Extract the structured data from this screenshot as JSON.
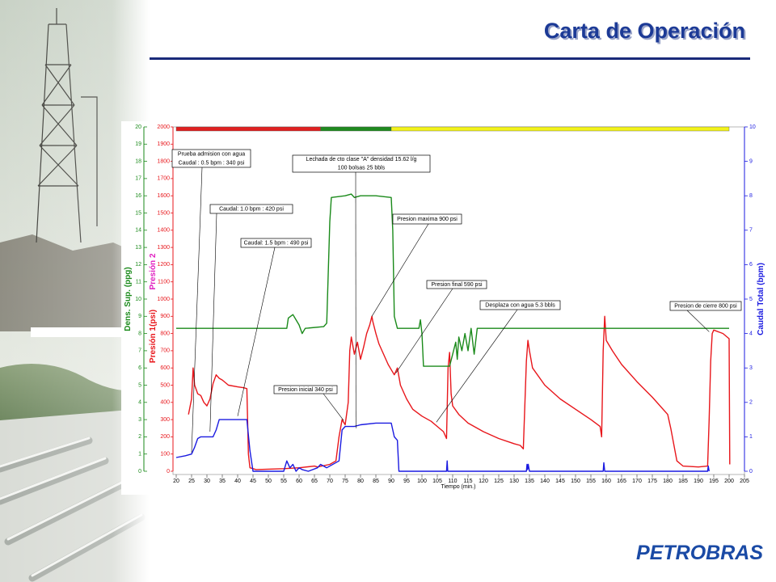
{
  "logo": "PETROBRAS",
  "chart_data": {
    "type": "line",
    "title": "Carta de Operación",
    "xlabel": "Tiempo (min.)",
    "ylabel": "Presión 1(psi)",
    "ylabel2": "Presión 2",
    "y2label": "Caudal Total (bpm)",
    "y3label": "Dens. Sup. (ppg)",
    "xlim": [
      20,
      205
    ],
    "xticks": [
      20,
      25,
      30,
      35,
      40,
      45,
      50,
      55,
      60,
      65,
      70,
      75,
      80,
      85,
      90,
      95,
      100,
      105,
      110,
      115,
      120,
      125,
      130,
      135,
      140,
      145,
      150,
      155,
      160,
      165,
      170,
      175,
      180,
      185,
      190,
      195,
      200,
      205
    ],
    "ylim": [
      0,
      2000
    ],
    "yticks": [
      0,
      100,
      200,
      300,
      400,
      500,
      600,
      700,
      800,
      900,
      1000,
      1100,
      1200,
      1300,
      1400,
      1500,
      1600,
      1700,
      1800,
      1900,
      2000
    ],
    "y2lim": [
      0,
      10
    ],
    "y2ticks": [
      0,
      1,
      2,
      3,
      4,
      5,
      6,
      7,
      8,
      9,
      10
    ],
    "y3lim": [
      0,
      20
    ],
    "y3ticks": [
      0,
      1,
      2,
      3,
      4,
      5,
      6,
      7,
      8,
      9,
      10,
      11,
      12,
      13,
      14,
      15,
      16,
      17,
      18,
      19,
      20
    ],
    "grid": false,
    "phases": [
      {
        "start": 20,
        "end": 67,
        "color": "#e02020"
      },
      {
        "start": 67,
        "end": 90,
        "color": "#1f8a1f"
      },
      {
        "start": 90,
        "end": 200,
        "color": "#f2f21a"
      }
    ],
    "series": [
      {
        "color": "#e8161b",
        "axis": "y",
        "x": [
          24,
          25,
          25.5,
          26,
          27,
          28,
          29,
          30,
          31,
          32,
          33,
          34,
          35,
          37,
          40,
          42,
          43,
          43.5,
          44,
          46,
          55,
          60,
          65,
          66,
          70,
          72,
          73,
          74,
          75,
          76,
          76.5,
          77,
          78,
          79,
          80,
          81,
          82,
          83,
          83.7,
          84,
          85,
          86,
          87,
          88,
          89,
          90,
          91,
          92,
          93,
          95,
          97,
          100,
          103,
          105,
          107,
          108,
          108.5,
          109,
          109.5,
          110,
          112,
          115,
          120,
          125,
          130,
          132,
          133,
          134,
          134.5,
          135,
          136,
          140,
          145,
          150,
          155,
          158,
          158.5,
          159,
          159.5,
          160,
          162,
          165,
          170,
          175,
          180,
          181,
          183,
          185,
          190,
          193,
          193.5,
          194,
          194.5,
          195,
          198,
          200,
          200.2
        ],
        "values": [
          330,
          420,
          600,
          500,
          450,
          440,
          400,
          380,
          420,
          510,
          560,
          540,
          530,
          500,
          490,
          485,
          480,
          100,
          20,
          10,
          15,
          20,
          30,
          25,
          40,
          60,
          200,
          300,
          270,
          400,
          700,
          780,
          680,
          750,
          650,
          720,
          800,
          850,
          900,
          870,
          800,
          740,
          700,
          660,
          620,
          590,
          560,
          600,
          500,
          420,
          360,
          320,
          290,
          260,
          230,
          190,
          600,
          690,
          450,
          380,
          330,
          280,
          230,
          190,
          160,
          150,
          130,
          640,
          760,
          700,
          600,
          500,
          420,
          360,
          300,
          260,
          200,
          700,
          900,
          760,
          700,
          620,
          520,
          430,
          330,
          250,
          60,
          30,
          25,
          30,
          300,
          640,
          800,
          820,
          800,
          770,
          40
        ]
      },
      {
        "color": "#1a8a1a",
        "axis": "y3",
        "x": [
          20,
          56,
          56.5,
          58,
          59,
          60,
          61,
          62,
          68,
          69,
          70,
          70.5,
          75,
          77,
          78,
          80,
          85,
          90,
          90.5,
          91,
          92,
          99,
          99.5,
          100,
          100.5,
          109,
          111,
          111.5,
          112,
          113,
          114,
          115,
          116,
          117,
          118,
          200
        ],
        "values": [
          8.3,
          8.3,
          8.9,
          9.1,
          8.8,
          8.5,
          8.0,
          8.3,
          8.4,
          8.6,
          14.5,
          15.9,
          16.0,
          16.1,
          15.9,
          16.0,
          16.0,
          15.9,
          14,
          9,
          8.3,
          8.3,
          8.8,
          8.0,
          6.1,
          6.1,
          7.5,
          6.5,
          7.8,
          7,
          8.0,
          7.0,
          8.3,
          6.8,
          8.3,
          8.3
        ]
      },
      {
        "color": "#1a1ae0",
        "axis": "y2",
        "x": [
          20,
          23,
          25,
          26,
          27,
          28,
          32,
          33,
          34,
          43,
          44,
          45,
          55,
          56,
          57,
          58,
          59,
          60,
          61,
          63,
          66,
          67,
          69,
          73,
          74,
          75,
          78,
          80,
          85,
          90,
          91,
          92,
          92.5,
          108,
          108.2,
          108.4,
          134,
          134.2,
          134.4,
          134.6,
          135,
          159,
          159.2,
          159.5,
          193,
          193.2,
          193.5
        ],
        "values": [
          0.4,
          0.45,
          0.5,
          0.7,
          0.95,
          1.0,
          1.0,
          1.2,
          1.5,
          1.5,
          0.6,
          0,
          0,
          0.3,
          0.1,
          0.2,
          0,
          0.1,
          0.05,
          0,
          0.1,
          0.2,
          0.1,
          0.3,
          1.2,
          1.3,
          1.3,
          1.35,
          1.4,
          1.4,
          1.0,
          0.9,
          0,
          0,
          0.3,
          0,
          0,
          0.2,
          0.05,
          0.2,
          0,
          0,
          0.25,
          0,
          0,
          0.15,
          0
        ]
      }
    ],
    "annotations": [
      {
        "lines": [
          "Prueba admision con agua",
          "Caudal : 0.5 bpm : 340 psi"
        ],
        "x": 25,
        "y": 108
      },
      {
        "lines": [
          "Caudal: 1.0 bpm : 420 psi"
        ],
        "x": 31,
        "y": 230
      },
      {
        "lines": [
          "Caudal: 1.5 bpm : 490 psi"
        ],
        "x": 40,
        "y": 320
      },
      {
        "lines": [
          "Lechada de cto clase \"A\" densidad 15.62 l/g",
          "100 bolsas 25 bbls"
        ],
        "x": 78.5,
        "y": 250
      },
      {
        "lines": [
          "Presion maxima 900 psi"
        ],
        "x": 83.7,
        "y": 900
      },
      {
        "lines": [
          "Presion final 590 psi"
        ],
        "x": 91.5,
        "y": 570
      },
      {
        "lines": [
          "Desplaza con agua 5.3 bbls"
        ],
        "x": 104.7,
        "y": 285
      },
      {
        "lines": [
          "Presion inicial 340 psi"
        ],
        "x": 74.5,
        "y": 295
      },
      {
        "lines": [
          "Presion de cierre 800 psi"
        ],
        "x": 193.5,
        "y": 810
      }
    ]
  }
}
